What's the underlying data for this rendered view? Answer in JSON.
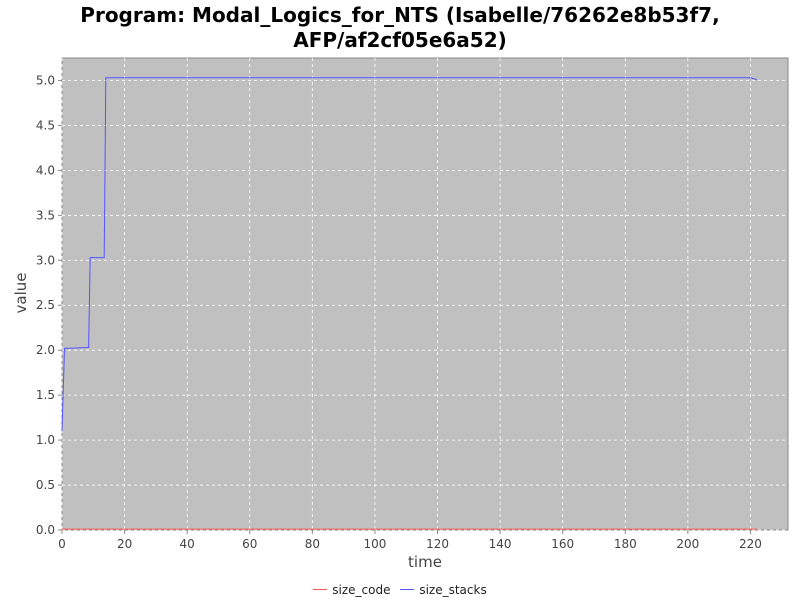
{
  "chart_data": {
    "type": "line",
    "title_lines": [
      "Program: Modal_Logics_for_NTS (Isabelle/76262e8b53f7,",
      "AFP/af2cf05e6a52)"
    ],
    "xlabel": "time",
    "ylabel": "value",
    "xlim": [
      0,
      232
    ],
    "ylim": [
      0,
      5.25
    ],
    "x_ticks": [
      0,
      20,
      40,
      60,
      80,
      100,
      120,
      140,
      160,
      180,
      200,
      220
    ],
    "y_ticks": [
      0.0,
      0.5,
      1.0,
      1.5,
      2.0,
      2.5,
      3.0,
      3.5,
      4.0,
      4.5,
      5.0
    ],
    "y_tick_labels": [
      "0.0",
      "0.5",
      "1.0",
      "1.5",
      "2.0",
      "2.5",
      "3.0",
      "3.5",
      "4.0",
      "4.5",
      "5.0"
    ],
    "grid": true,
    "legend_position": "bottom-center",
    "series": [
      {
        "name": "size_code",
        "color": "#ff5555",
        "x": [
          0,
          222
        ],
        "y": [
          0.01,
          0.01
        ]
      },
      {
        "name": "size_stacks",
        "color": "#5555ff",
        "x": [
          0,
          0.8,
          1.2,
          8.5,
          9,
          13.5,
          14,
          220,
          222
        ],
        "y": [
          1.1,
          2.02,
          2.02,
          2.03,
          3.03,
          3.03,
          5.03,
          5.03,
          5.01
        ]
      }
    ]
  }
}
